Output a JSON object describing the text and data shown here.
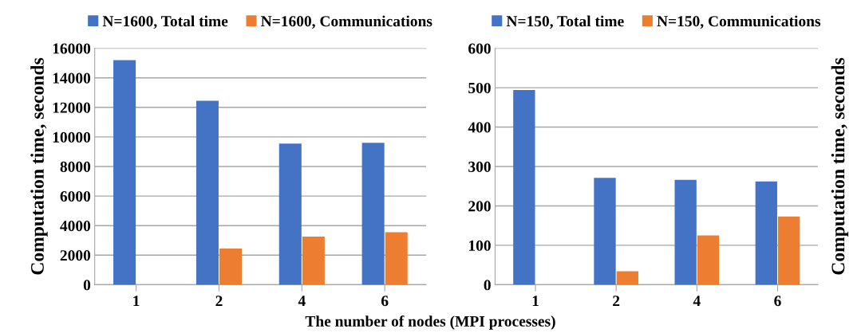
{
  "chart_data": [
    {
      "type": "bar",
      "categories": [
        "1",
        "2",
        "4",
        "6"
      ],
      "xlabel": "The number of nodes (MPI processes)",
      "ylabel": "Computation time, seconds",
      "ylim": [
        0,
        16000
      ],
      "yticks": [
        0,
        2000,
        4000,
        6000,
        8000,
        10000,
        12000,
        14000,
        16000
      ],
      "grid": "y",
      "legend": "top",
      "series": [
        {
          "name": "N=1600, Total time",
          "color": "#4472c4",
          "values": [
            15200,
            12450,
            9550,
            9600
          ]
        },
        {
          "name": "N=1600, Communications",
          "color": "#ed7d31",
          "values": [
            0,
            2450,
            3250,
            3550
          ]
        }
      ]
    },
    {
      "type": "bar",
      "categories": [
        "1",
        "2",
        "4",
        "6"
      ],
      "ylabel": "Computation time, seconds",
      "ylim": [
        0,
        600
      ],
      "yticks": [
        0,
        100,
        200,
        300,
        400,
        500,
        600
      ],
      "grid": "y",
      "legend": "top",
      "series": [
        {
          "name": "N=150, Total time",
          "color": "#4472c4",
          "values": [
            494,
            271,
            266,
            262
          ]
        },
        {
          "name": "N=150, Communications",
          "color": "#ed7d31",
          "values": [
            0,
            34,
            125,
            173
          ]
        }
      ]
    }
  ]
}
